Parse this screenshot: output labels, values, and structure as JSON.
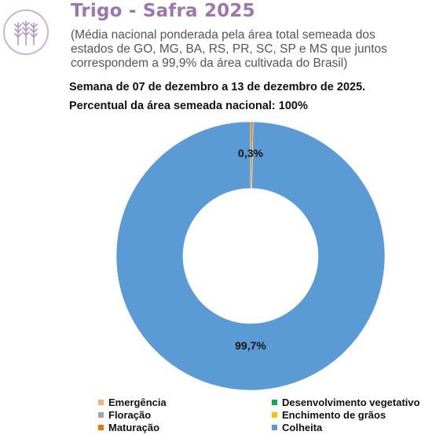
{
  "header": {
    "title": "Trigo - Safra 2025",
    "subtitle": "(Média nacional ponderada pela área total semeada dos estados de GO, MG, BA, RS, PR, SC, SP e MS que juntos correspondem a 99,9% da área cultivada do Brasil)",
    "week": "Semana de 07 de dezembro a 13 de dezembro de 2025.",
    "area_pct": "Percentual da área semeada nacional: 100%",
    "icon": "wheat-icon"
  },
  "chart_data": {
    "type": "pie",
    "donut": true,
    "title": "",
    "labels": [
      "Emergência",
      "Desenvolvimento vegetativo",
      "Floração",
      "Enchimento de grãos",
      "Maturação",
      "Colheita"
    ],
    "values": [
      0,
      0,
      0,
      0,
      0.3,
      99.7
    ],
    "data_labels": [
      "",
      "",
      "",
      "",
      "0,3%",
      "99,7%"
    ],
    "colors": [
      "#f4b183",
      "#00b050",
      "#a5a5a5",
      "#ffc000",
      "#e07b00",
      "#5b9bd5"
    ],
    "legend_placement": "bottom"
  }
}
